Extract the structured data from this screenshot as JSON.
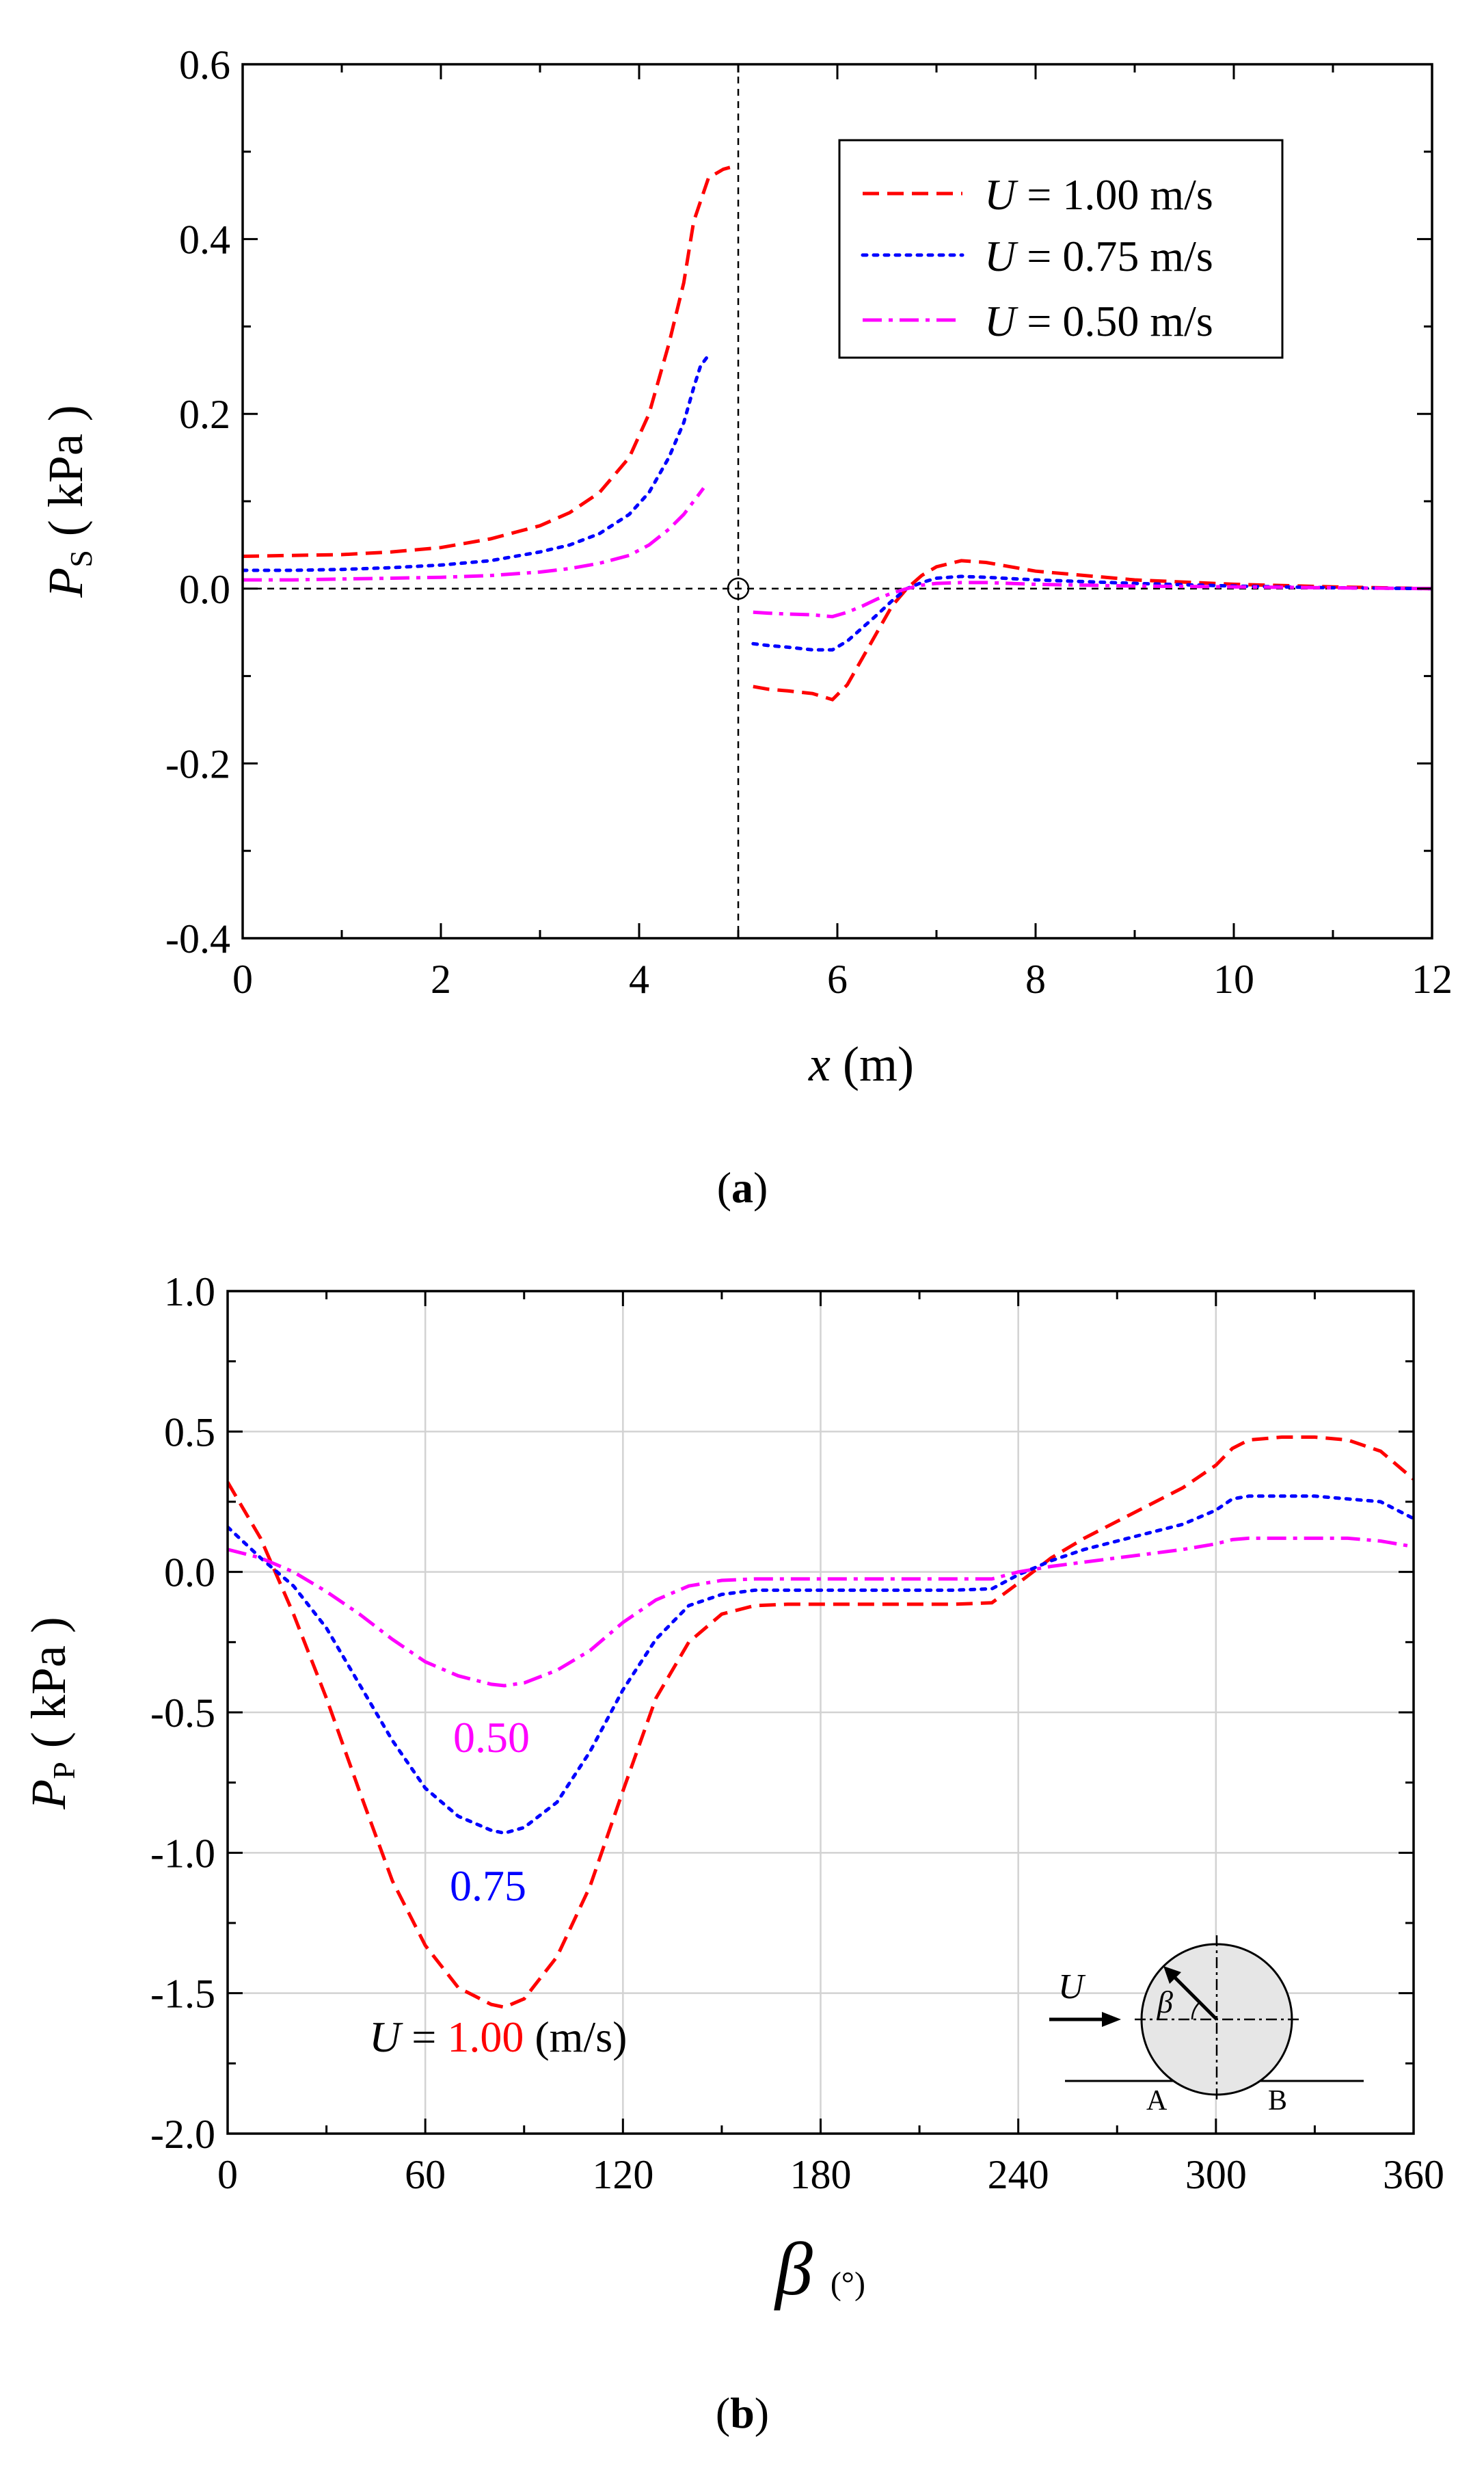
{
  "chart_data": [
    {
      "type": "line",
      "panel_label": "a",
      "xlabel": "x",
      "xlabel_unit": "(m)",
      "ylabel": "P",
      "ylabel_sub": "S",
      "ylabel_unit": "( kPa )",
      "xlim": [
        0,
        12
      ],
      "ylim": [
        -0.4,
        0.6
      ],
      "xticks": [
        "0",
        "2",
        "4",
        "6",
        "8",
        "10",
        "12"
      ],
      "yticks": [
        "-0.4",
        "-0.2",
        "0.0",
        "0.2",
        "0.4",
        "0.6"
      ],
      "reference_lines": {
        "x": 5,
        "y": 0.0
      },
      "legend_position": "top-right",
      "series": [
        {
          "name": "U = 1.00 m/s",
          "legend_var": "U",
          "legend_rest": " = 1.00 m/s",
          "color": "#ff0000",
          "dash": "dashed",
          "x": [
            0,
            0.5,
            1,
            1.5,
            2,
            2.5,
            3,
            3.3,
            3.6,
            3.9,
            4.1,
            4.3,
            4.45,
            4.55,
            4.7,
            4.85,
            4.95,
            null,
            5.15,
            5.3,
            5.5,
            5.75,
            5.95,
            6.1,
            6.25,
            6.4,
            6.55,
            6.7,
            6.85,
            7,
            7.25,
            7.5,
            8,
            9,
            10,
            11,
            12
          ],
          "y": [
            0.037,
            0.038,
            0.039,
            0.042,
            0.047,
            0.057,
            0.072,
            0.087,
            0.11,
            0.15,
            0.2,
            0.28,
            0.35,
            0.42,
            0.47,
            0.48,
            0.483,
            null,
            -0.112,
            -0.115,
            -0.117,
            -0.12,
            -0.127,
            -0.11,
            -0.08,
            -0.05,
            -0.02,
            0,
            0.015,
            0.025,
            0.032,
            0.03,
            0.02,
            0.01,
            0.005,
            0.002,
            0
          ]
        },
        {
          "name": "U = 0.75 m/s",
          "legend_var": "U",
          "legend_rest": " = 0.75 m/s",
          "color": "#0000ff",
          "dash": "dotted",
          "x": [
            0,
            0.5,
            1,
            1.5,
            2,
            2.5,
            3,
            3.3,
            3.6,
            3.9,
            4.1,
            4.3,
            4.45,
            4.55,
            4.62,
            4.72,
            null,
            5.15,
            5.3,
            5.5,
            5.75,
            5.95,
            6.1,
            6.25,
            6.4,
            6.55,
            6.7,
            6.85,
            7,
            7.25,
            7.5,
            8,
            9,
            10,
            11,
            12
          ],
          "y": [
            0.021,
            0.021,
            0.022,
            0.024,
            0.027,
            0.032,
            0.042,
            0.05,
            0.063,
            0.085,
            0.11,
            0.15,
            0.19,
            0.23,
            0.255,
            0.27,
            null,
            -0.063,
            -0.065,
            -0.067,
            -0.07,
            -0.07,
            -0.06,
            -0.045,
            -0.03,
            -0.014,
            0,
            0.007,
            0.012,
            0.014,
            0.013,
            0.01,
            0.006,
            0.003,
            0.001,
            0
          ]
        },
        {
          "name": "U = 0.50 m/s",
          "legend_var": "U",
          "legend_rest": " = 0.50 m/s",
          "color": "#ff00ff",
          "dash": "dashdot",
          "x": [
            0,
            0.5,
            1,
            1.5,
            2,
            2.5,
            3,
            3.3,
            3.6,
            3.9,
            4.1,
            4.3,
            4.45,
            4.55,
            4.65,
            null,
            5.15,
            5.3,
            5.5,
            5.75,
            5.95,
            6.1,
            6.25,
            6.4,
            6.55,
            6.7,
            6.85,
            7,
            7.25,
            7.5,
            8,
            9,
            10,
            11,
            12
          ],
          "y": [
            0.01,
            0.01,
            0.011,
            0.012,
            0.013,
            0.015,
            0.019,
            0.023,
            0.029,
            0.038,
            0.05,
            0.068,
            0.085,
            0.1,
            0.115,
            null,
            -0.027,
            -0.028,
            -0.029,
            -0.03,
            -0.032,
            -0.027,
            -0.02,
            -0.012,
            -0.005,
            0,
            0.004,
            0.006,
            0.007,
            0.007,
            0.005,
            0.003,
            0.002,
            0.001,
            0
          ]
        }
      ]
    },
    {
      "type": "line",
      "panel_label": "b",
      "xlabel": "β",
      "xlabel_unit": "(°)",
      "ylabel": "P",
      "ylabel_sub": "P",
      "ylabel_unit": "( kPa )",
      "xlim": [
        0,
        360
      ],
      "ylim": [
        -2.0,
        1.0
      ],
      "xticks": [
        "0",
        "60",
        "120",
        "180",
        "240",
        "300",
        "360"
      ],
      "yticks": [
        "-2.0",
        "-1.5",
        "-1.0",
        "-0.5",
        "0.0",
        "0.5",
        "1.0"
      ],
      "grid": true,
      "annotations": {
        "label_050": "0.50",
        "label_075": "0.75",
        "u_prefix": "U",
        "u_equals": " = ",
        "u_value": "1.00",
        "u_unit": " (m/s)"
      },
      "inset": {
        "flow_label": "U",
        "angle_label": "β",
        "point_a": "A",
        "point_b": "B"
      },
      "series": [
        {
          "name": "U = 1.00 m/s",
          "color": "#ff0000",
          "dash": "dashed",
          "x": [
            0,
            10,
            20,
            30,
            40,
            50,
            60,
            70,
            80,
            84,
            90,
            100,
            110,
            120,
            130,
            140,
            150,
            160,
            170,
            180,
            200,
            220,
            232,
            240,
            250,
            260,
            270,
            280,
            290,
            300,
            305,
            310,
            320,
            330,
            340,
            350,
            360
          ],
          "y": [
            0.32,
            0.12,
            -0.15,
            -0.45,
            -0.78,
            -1.1,
            -1.33,
            -1.48,
            -1.54,
            -1.55,
            -1.52,
            -1.37,
            -1.12,
            -0.78,
            -0.45,
            -0.25,
            -0.15,
            -0.12,
            -0.115,
            -0.115,
            -0.115,
            -0.115,
            -0.11,
            -0.04,
            0.05,
            0.12,
            0.18,
            0.24,
            0.3,
            0.38,
            0.44,
            0.47,
            0.48,
            0.48,
            0.47,
            0.43,
            0.33
          ]
        },
        {
          "name": "U = 0.75 m/s",
          "color": "#0000ff",
          "dash": "dotted",
          "x": [
            0,
            10,
            20,
            30,
            40,
            50,
            60,
            70,
            80,
            84,
            90,
            100,
            110,
            120,
            130,
            140,
            150,
            160,
            180,
            200,
            220,
            232,
            240,
            250,
            260,
            270,
            280,
            290,
            300,
            305,
            310,
            320,
            330,
            340,
            350,
            360
          ],
          "y": [
            0.16,
            0.05,
            -0.05,
            -0.2,
            -0.4,
            -0.6,
            -0.77,
            -0.87,
            -0.92,
            -0.93,
            -0.91,
            -0.82,
            -0.64,
            -0.42,
            -0.24,
            -0.12,
            -0.08,
            -0.065,
            -0.065,
            -0.065,
            -0.065,
            -0.06,
            -0.01,
            0.04,
            0.08,
            0.11,
            0.14,
            0.17,
            0.22,
            0.26,
            0.27,
            0.27,
            0.27,
            0.26,
            0.25,
            0.19
          ]
        },
        {
          "name": "U = 0.50 m/s",
          "color": "#ff00ff",
          "dash": "dashdot",
          "x": [
            0,
            10,
            20,
            30,
            40,
            50,
            60,
            70,
            80,
            84,
            90,
            100,
            110,
            120,
            130,
            140,
            150,
            160,
            180,
            200,
            220,
            232,
            240,
            250,
            260,
            270,
            280,
            290,
            300,
            305,
            310,
            320,
            330,
            340,
            350,
            360
          ],
          "y": [
            0.08,
            0.05,
            0.0,
            -0.07,
            -0.15,
            -0.24,
            -0.32,
            -0.37,
            -0.4,
            -0.405,
            -0.395,
            -0.35,
            -0.28,
            -0.18,
            -0.1,
            -0.05,
            -0.03,
            -0.025,
            -0.025,
            -0.025,
            -0.025,
            -0.025,
            0.0,
            0.02,
            0.035,
            0.05,
            0.065,
            0.08,
            0.1,
            0.115,
            0.12,
            0.12,
            0.12,
            0.12,
            0.11,
            0.09
          ]
        }
      ]
    }
  ]
}
